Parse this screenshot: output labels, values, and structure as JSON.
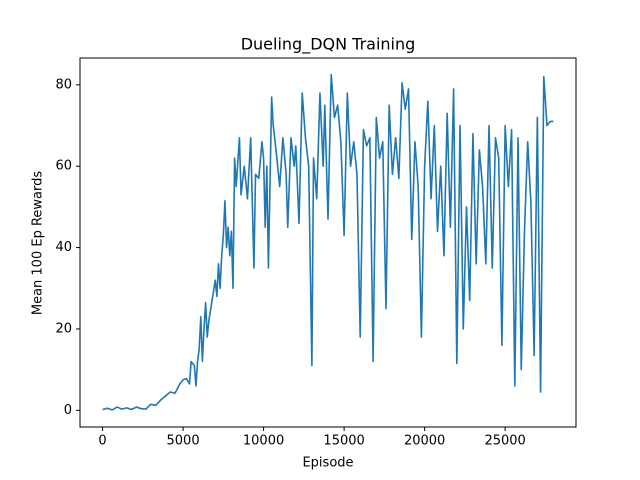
{
  "chart_data": {
    "type": "line",
    "title": "Dueling_DQN Training",
    "x_label": "Episode",
    "y_label": "Mean 100 Ep Rewards",
    "color": "#1f77b4",
    "x": [
      0,
      300,
      600,
      900,
      1200,
      1500,
      1800,
      2100,
      2400,
      2700,
      3000,
      3300,
      3600,
      3900,
      4200,
      4500,
      4800,
      5000,
      5200,
      5400,
      5500,
      5700,
      5800,
      5900,
      6000,
      6100,
      6200,
      6300,
      6400,
      6500,
      6600,
      6800,
      7000,
      7100,
      7200,
      7300,
      7400,
      7500,
      7600,
      7700,
      7800,
      7900,
      8000,
      8100,
      8200,
      8300,
      8500,
      8600,
      8800,
      9000,
      9200,
      9400,
      9500,
      9700,
      9900,
      10000,
      10100,
      10200,
      10300,
      10500,
      10600,
      10800,
      11000,
      11200,
      11400,
      11500,
      11700,
      11900,
      12000,
      12200,
      12400,
      12600,
      12800,
      13000,
      13100,
      13300,
      13500,
      13700,
      13800,
      14000,
      14200,
      14400,
      14600,
      14800,
      15000,
      15200,
      15400,
      15600,
      15800,
      16000,
      16200,
      16400,
      16600,
      16800,
      17000,
      17200,
      17400,
      17600,
      17800,
      18000,
      18200,
      18400,
      18600,
      18800,
      19000,
      19200,
      19400,
      19600,
      19800,
      20000,
      20200,
      20400,
      20600,
      20800,
      21000,
      21200,
      21400,
      21600,
      21800,
      22000,
      22200,
      22400,
      22600,
      22800,
      23000,
      23200,
      23400,
      23600,
      23800,
      24000,
      24200,
      24400,
      24600,
      24800,
      25000,
      25200,
      25400,
      25600,
      25800,
      26000,
      26200,
      26400,
      26600,
      26800,
      27000,
      27200,
      27400,
      27600,
      27800,
      28000
    ],
    "values": [
      0.2,
      0.5,
      0.1,
      0.8,
      0.3,
      0.6,
      0.2,
      0.8,
      0.4,
      0.3,
      1.5,
      1.2,
      2.5,
      3.5,
      4.5,
      4.2,
      6.5,
      7.5,
      7.8,
      6.5,
      12,
      11,
      6,
      12,
      15,
      23,
      12,
      20,
      26.5,
      18,
      22,
      27,
      32,
      28,
      36,
      30,
      38,
      43,
      51.5,
      40,
      45,
      38,
      44,
      30,
      62,
      55,
      67,
      53,
      60,
      52,
      67,
      35,
      58,
      57,
      66,
      62,
      45,
      60,
      35,
      77,
      70,
      63,
      55,
      67,
      58,
      45,
      67,
      60,
      65,
      46,
      78,
      67,
      60,
      11,
      62,
      52,
      78,
      60,
      75,
      47,
      82.5,
      72,
      75,
      66,
      43,
      78,
      60,
      66,
      58,
      18,
      69,
      65,
      67,
      12,
      72,
      62,
      66,
      25,
      75,
      58,
      67,
      57,
      80.5,
      74,
      79,
      42,
      66,
      55,
      18,
      60,
      76,
      52,
      70,
      44,
      60,
      38,
      73,
      45,
      79,
      11.5,
      70,
      20,
      50,
      27,
      68,
      36,
      64,
      55,
      36,
      70,
      35,
      67,
      62,
      16,
      70,
      55,
      69,
      6,
      67,
      10,
      44,
      66,
      51,
      13.5,
      72,
      4.5,
      82,
      70,
      71,
      71
    ],
    "xlim": [
      -1400,
      29400
    ],
    "xticks": [
      0,
      5000,
      10000,
      15000,
      20000,
      25000
    ],
    "ylim": [
      -4.1,
      86.6
    ],
    "yticks": [
      0,
      20,
      40,
      60,
      80
    ]
  }
}
